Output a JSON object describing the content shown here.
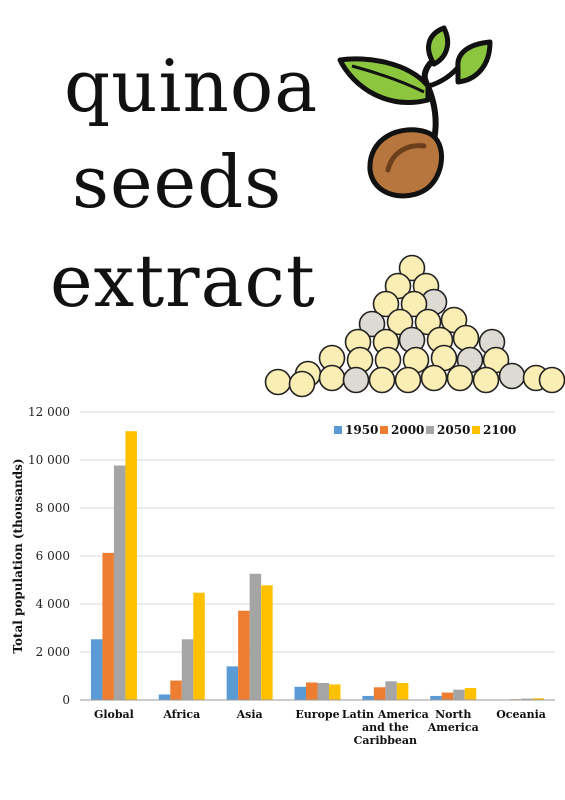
{
  "poster": {
    "title_lines": [
      "quinoa",
      "seeds",
      "extract"
    ]
  },
  "icons": {
    "sprout": "sprout-seedling-icon",
    "seed_pile": "quinoa-seed-pile-illustration"
  },
  "colors": {
    "leaf": "#8cc63f",
    "seed": "#b8763f",
    "quinoa": "#fbeeb4",
    "quinoa_dark": "#dcdad2"
  },
  "chart_data": {
    "type": "bar",
    "title": "",
    "xlabel": "",
    "ylabel": "Total population (thousands)",
    "ylim": [
      0,
      12000
    ],
    "yticks": [
      0,
      2000,
      4000,
      6000,
      8000,
      10000,
      12000
    ],
    "ytick_labels": [
      "0",
      "2 000",
      "4 000",
      "6 000",
      "8 000",
      "10 000",
      "12 000"
    ],
    "grid": true,
    "legend_position": "top-right",
    "categories": [
      "Global",
      "Africa",
      "Asia",
      "Europe",
      "Latin America and the Caribbean",
      "North America",
      "Oceania"
    ],
    "category_label_lines": [
      [
        "Global"
      ],
      [
        "Africa"
      ],
      [
        "Asia"
      ],
      [
        "Europe"
      ],
      [
        "Latin America",
        "and the",
        "Caribbean"
      ],
      [
        "North",
        "America"
      ],
      [
        "Oceania"
      ]
    ],
    "series": [
      {
        "name": "1950",
        "color": "#5b9bd5",
        "values": [
          2530,
          230,
          1400,
          550,
          170,
          170,
          13
        ]
      },
      {
        "name": "2000",
        "color": "#ed7d31",
        "values": [
          6130,
          810,
          3720,
          730,
          530,
          310,
          31
        ]
      },
      {
        "name": "2050",
        "color": "#a5a5a5",
        "values": [
          9770,
          2530,
          5260,
          710,
          780,
          430,
          57
        ]
      },
      {
        "name": "2100",
        "color": "#ffc000",
        "values": [
          11200,
          4470,
          4780,
          650,
          710,
          500,
          71
        ]
      }
    ]
  }
}
